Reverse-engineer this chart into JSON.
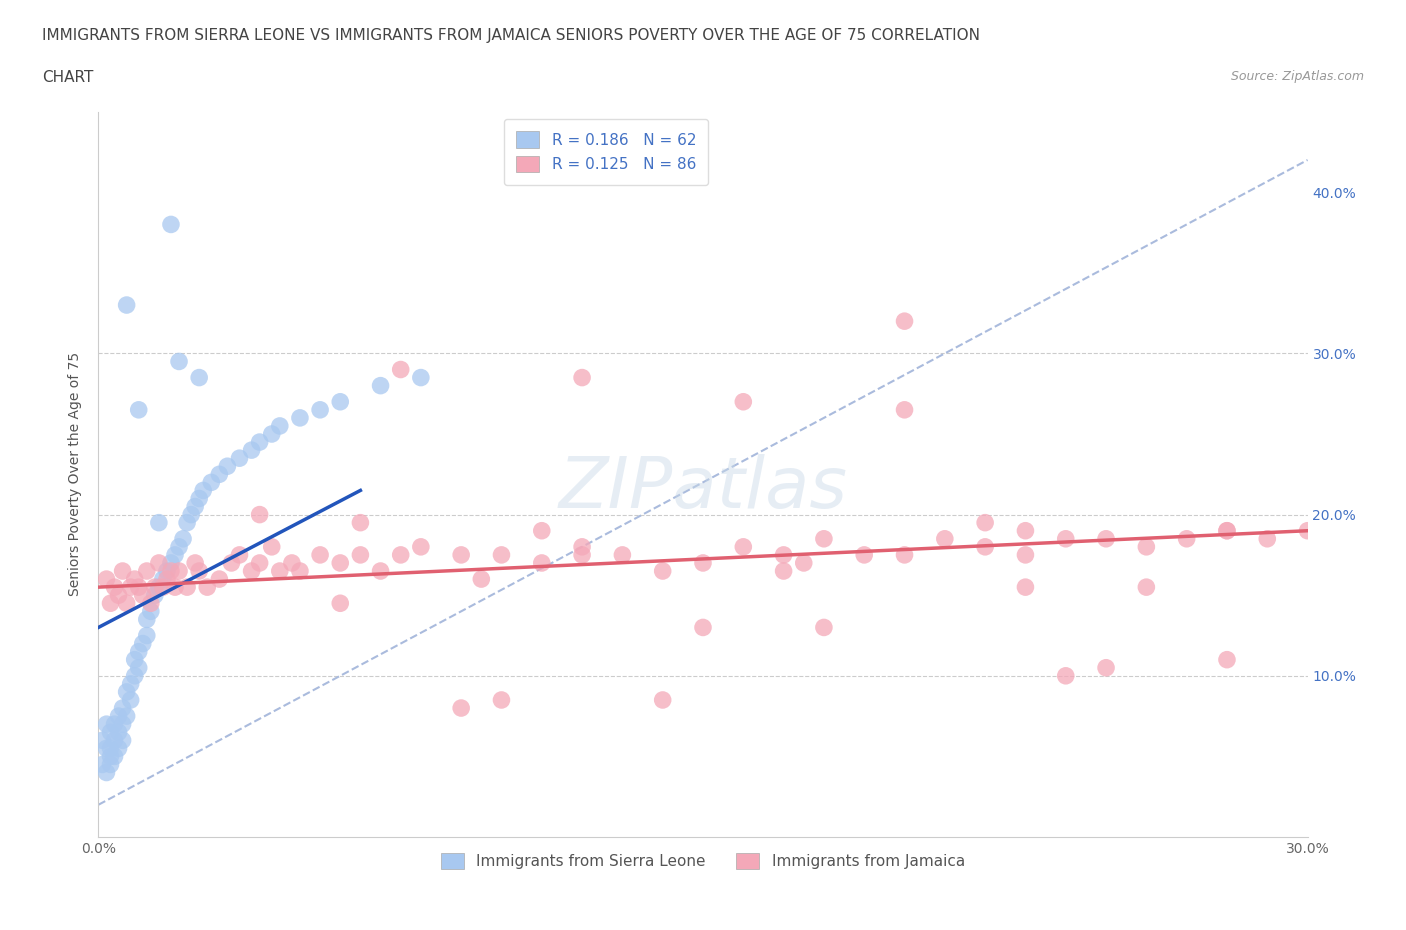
{
  "title_line1": "IMMIGRANTS FROM SIERRA LEONE VS IMMIGRANTS FROM JAMAICA SENIORS POVERTY OVER THE AGE OF 75 CORRELATION",
  "title_line2": "CHART",
  "source": "Source: ZipAtlas.com",
  "ylabel": "Seniors Poverty Over the Age of 75",
  "watermark": "ZIPatlas",
  "xlim": [
    0.0,
    0.3
  ],
  "ylim": [
    0.0,
    0.45
  ],
  "sierra_leone_color": "#a8c8f0",
  "jamaica_color": "#f4a8b8",
  "sierra_leone_line_color": "#2255bb",
  "jamaica_line_color": "#e06070",
  "ref_line_color": "#aabbdd",
  "R_sierra": 0.186,
  "N_sierra": 62,
  "R_jamaica": 0.125,
  "N_jamaica": 86,
  "legend_label_sierra": "Immigrants from Sierra Leone",
  "legend_label_jamaica": "Immigrants from Jamaica",
  "title_fontsize": 11,
  "axis_label_fontsize": 10,
  "tick_fontsize": 10,
  "legend_fontsize": 11,
  "sl_x": [
    0.001,
    0.001,
    0.002,
    0.002,
    0.002,
    0.003,
    0.003,
    0.003,
    0.003,
    0.004,
    0.004,
    0.004,
    0.005,
    0.005,
    0.005,
    0.006,
    0.006,
    0.006,
    0.007,
    0.007,
    0.008,
    0.008,
    0.009,
    0.009,
    0.01,
    0.01,
    0.011,
    0.012,
    0.012,
    0.013,
    0.014,
    0.015,
    0.016,
    0.017,
    0.018,
    0.019,
    0.02,
    0.021,
    0.022,
    0.023,
    0.024,
    0.025,
    0.026,
    0.028,
    0.03,
    0.032,
    0.035,
    0.038,
    0.04,
    0.043,
    0.045,
    0.05,
    0.055,
    0.06,
    0.07,
    0.08,
    0.007,
    0.01,
    0.015,
    0.018,
    0.02,
    0.025
  ],
  "sl_y": [
    0.06,
    0.045,
    0.055,
    0.04,
    0.07,
    0.05,
    0.065,
    0.045,
    0.055,
    0.06,
    0.05,
    0.07,
    0.055,
    0.065,
    0.075,
    0.06,
    0.08,
    0.07,
    0.075,
    0.09,
    0.085,
    0.095,
    0.1,
    0.11,
    0.105,
    0.115,
    0.12,
    0.125,
    0.135,
    0.14,
    0.15,
    0.155,
    0.16,
    0.165,
    0.17,
    0.175,
    0.18,
    0.185,
    0.195,
    0.2,
    0.205,
    0.21,
    0.215,
    0.22,
    0.225,
    0.23,
    0.235,
    0.24,
    0.245,
    0.25,
    0.255,
    0.26,
    0.265,
    0.27,
    0.28,
    0.285,
    0.33,
    0.265,
    0.195,
    0.38,
    0.295,
    0.285
  ],
  "ja_x": [
    0.002,
    0.003,
    0.004,
    0.005,
    0.006,
    0.007,
    0.008,
    0.009,
    0.01,
    0.011,
    0.012,
    0.013,
    0.014,
    0.015,
    0.016,
    0.017,
    0.018,
    0.019,
    0.02,
    0.022,
    0.024,
    0.025,
    0.027,
    0.03,
    0.033,
    0.035,
    0.038,
    0.04,
    0.043,
    0.045,
    0.048,
    0.05,
    0.055,
    0.06,
    0.065,
    0.07,
    0.075,
    0.08,
    0.09,
    0.095,
    0.1,
    0.11,
    0.12,
    0.13,
    0.14,
    0.15,
    0.16,
    0.17,
    0.18,
    0.19,
    0.2,
    0.21,
    0.22,
    0.23,
    0.24,
    0.25,
    0.26,
    0.27,
    0.28,
    0.29,
    0.3,
    0.075,
    0.12,
    0.16,
    0.2,
    0.24,
    0.28,
    0.09,
    0.14,
    0.18,
    0.22,
    0.26,
    0.04,
    0.065,
    0.1,
    0.15,
    0.2,
    0.25,
    0.12,
    0.175,
    0.23,
    0.28,
    0.06,
    0.11,
    0.17,
    0.23
  ],
  "ja_y": [
    0.16,
    0.145,
    0.155,
    0.15,
    0.165,
    0.145,
    0.155,
    0.16,
    0.155,
    0.15,
    0.165,
    0.145,
    0.155,
    0.17,
    0.155,
    0.16,
    0.165,
    0.155,
    0.165,
    0.155,
    0.17,
    0.165,
    0.155,
    0.16,
    0.17,
    0.175,
    0.165,
    0.17,
    0.18,
    0.165,
    0.17,
    0.165,
    0.175,
    0.17,
    0.175,
    0.165,
    0.175,
    0.18,
    0.175,
    0.16,
    0.175,
    0.17,
    0.18,
    0.175,
    0.165,
    0.17,
    0.18,
    0.175,
    0.185,
    0.175,
    0.175,
    0.185,
    0.18,
    0.175,
    0.185,
    0.185,
    0.18,
    0.185,
    0.19,
    0.185,
    0.19,
    0.29,
    0.285,
    0.27,
    0.265,
    0.1,
    0.11,
    0.08,
    0.085,
    0.13,
    0.195,
    0.155,
    0.2,
    0.195,
    0.085,
    0.13,
    0.32,
    0.105,
    0.175,
    0.17,
    0.155,
    0.19,
    0.145,
    0.19,
    0.165,
    0.19
  ]
}
